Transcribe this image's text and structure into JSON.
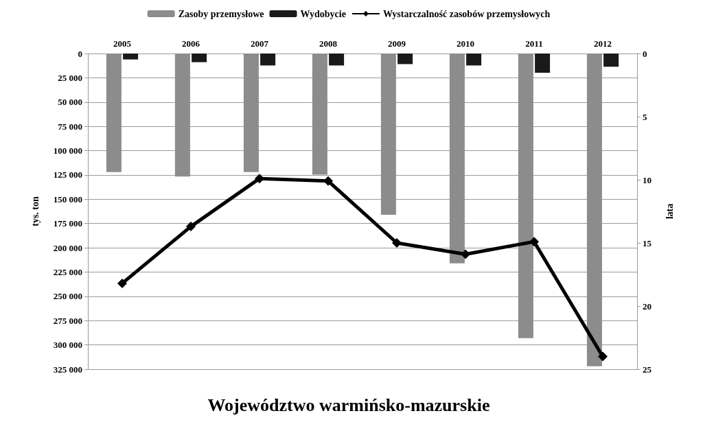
{
  "chart_data": {
    "type": "bar",
    "title": "Województwo warmińsko-mazurskie",
    "ylabel": "tys. ton",
    "y2label": "lata",
    "categories": [
      "2005",
      "2006",
      "2007",
      "2008",
      "2009",
      "2010",
      "2011",
      "2012"
    ],
    "series": [
      {
        "name": "Zasoby przemysłowe",
        "color": "#8c8c8c",
        "values": [
          122000,
          126700,
          122000,
          124700,
          166000,
          216000,
          293000,
          322000
        ]
      },
      {
        "name": "Wydobycie",
        "color": "#1a1a1a",
        "values": [
          6100,
          8900,
          12300,
          12300,
          10900,
          12300,
          19800,
          13600
        ]
      },
      {
        "name": "Wystarczalność zasobów przemysłowych",
        "type": "line",
        "axis": "y2",
        "color": "#000000",
        "marker": "diamond",
        "values": [
          18.2,
          13.7,
          9.9,
          10.1,
          15.0,
          15.9,
          14.9,
          24.0
        ]
      }
    ],
    "ylim": [
      325000,
      0
    ],
    "yticks": [
      0,
      {
        "value": 25000,
        "label": "25 000"
      },
      {
        "value": 50000,
        "label": "50 000"
      },
      {
        "value": 75000,
        "label": "75 000"
      },
      {
        "value": 100000,
        "label": "100 000"
      },
      {
        "value": 125000,
        "label": "125 000"
      },
      {
        "value": 150000,
        "label": "150 000"
      },
      {
        "value": 175000,
        "label": "175 000"
      },
      {
        "value": 200000,
        "label": "200 000"
      },
      {
        "value": 225000,
        "label": "225 000"
      },
      {
        "value": 250000,
        "label": "250 000"
      },
      {
        "value": 275000,
        "label": "275 000"
      },
      {
        "value": 300000,
        "label": "300 000"
      },
      {
        "value": 325000,
        "label": "325 000"
      }
    ],
    "y2lim": [
      25,
      0
    ],
    "y2ticks": [
      0,
      5,
      10,
      15,
      20,
      25
    ],
    "grid": "y",
    "legend": "top"
  }
}
